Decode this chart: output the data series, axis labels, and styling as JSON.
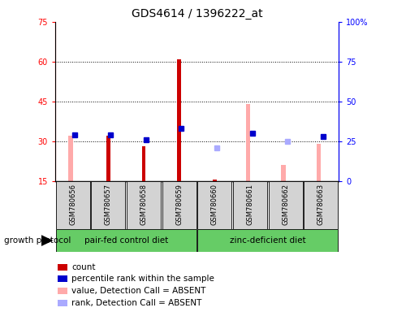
{
  "title": "GDS4614 / 1396222_at",
  "samples": [
    "GSM780656",
    "GSM780657",
    "GSM780658",
    "GSM780659",
    "GSM780660",
    "GSM780661",
    "GSM780662",
    "GSM780663"
  ],
  "count_values": [
    null,
    32,
    28,
    61,
    15.5,
    null,
    null,
    null
  ],
  "percentile_values": [
    29,
    29,
    26,
    33,
    null,
    30,
    null,
    28
  ],
  "absent_value_values": [
    32,
    null,
    null,
    null,
    null,
    44,
    21,
    29
  ],
  "absent_rank_values": [
    null,
    null,
    null,
    null,
    21,
    null,
    25,
    null
  ],
  "count_color": "#cc0000",
  "percentile_color": "#0000cc",
  "absent_value_color": "#ffaaaa",
  "absent_rank_color": "#aaaaff",
  "ylim_left": [
    15,
    75
  ],
  "ylim_right": [
    0,
    100
  ],
  "yticks_left": [
    15,
    30,
    45,
    60,
    75
  ],
  "yticks_right": [
    0,
    25,
    50,
    75,
    100
  ],
  "ytick_labels_right": [
    "0",
    "25",
    "50",
    "75",
    "100%"
  ],
  "group1_label": "pair-fed control diet",
  "group2_label": "zinc-deficient diet",
  "group1_samples": 4,
  "group2_samples": 4,
  "xlabel_protocol": "growth protocol",
  "legend_items": [
    {
      "color": "#cc0000",
      "label": "count"
    },
    {
      "color": "#0000cc",
      "label": "percentile rank within the sample"
    },
    {
      "color": "#ffaaaa",
      "label": "value, Detection Call = ABSENT"
    },
    {
      "color": "#aaaaff",
      "label": "rank, Detection Call = ABSENT"
    }
  ],
  "background_color": "#ffffff",
  "group_box_color": "#d3d3d3",
  "group_label_bg_color": "#66cc66"
}
